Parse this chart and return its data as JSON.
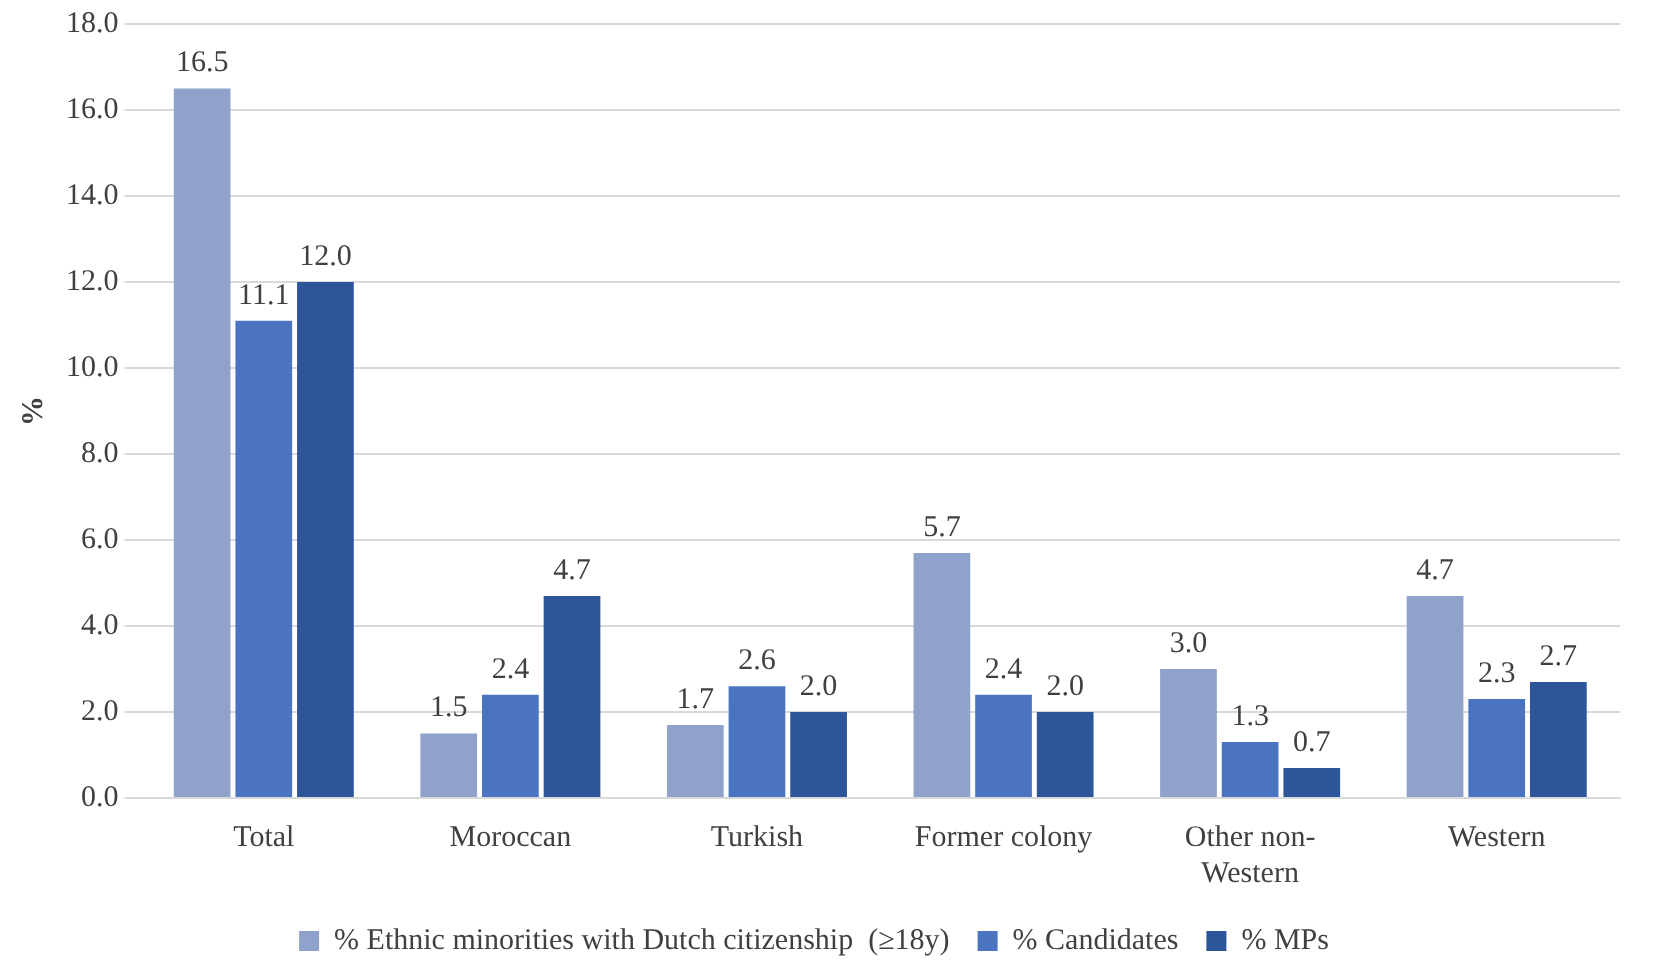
{
  "chart_data": {
    "type": "bar",
    "ylabel": "%",
    "categories": [
      "Total",
      "Moroccan",
      "Turkish",
      "Former colony",
      "Other non-Western",
      "Western"
    ],
    "series": [
      {
        "name": "% Ethnic minorities with Dutch citizenship  (≥18y)",
        "color": "#8fa2cc",
        "values": [
          16.5,
          1.5,
          1.7,
          5.7,
          3.0,
          4.7
        ],
        "value_labels": [
          "16.5",
          "1.5",
          "1.7",
          "5.7",
          "3.0",
          "4.7"
        ]
      },
      {
        "name": "% Candidates",
        "color": "#4a74c0",
        "values": [
          11.1,
          2.4,
          2.6,
          2.4,
          1.3,
          2.3
        ],
        "value_labels": [
          "11.1",
          "2.4",
          "2.6",
          "2.4",
          "1.3",
          "2.3"
        ]
      },
      {
        "name": "% MPs",
        "color": "#2d5599",
        "values": [
          12.0,
          4.7,
          2.0,
          2.0,
          0.7,
          2.7
        ],
        "value_labels": [
          "12.0",
          "4.7",
          "2.0",
          "2.0",
          "0.7",
          "2.7"
        ]
      }
    ],
    "ylim": [
      0,
      18
    ],
    "yticks": [
      {
        "value": 0,
        "label": "0.0"
      },
      {
        "value": 2,
        "label": "2.0"
      },
      {
        "value": 4,
        "label": "4.0"
      },
      {
        "value": 6,
        "label": "6.0"
      },
      {
        "value": 8,
        "label": "8.0"
      },
      {
        "value": 10,
        "label": "10.0"
      },
      {
        "value": 12,
        "label": "12.0"
      },
      {
        "value": 14,
        "label": "14.0"
      },
      {
        "value": 16,
        "label": "16.0"
      },
      {
        "value": 18,
        "label": "18.0"
      }
    ],
    "grid": "y",
    "legend": "bottom"
  }
}
